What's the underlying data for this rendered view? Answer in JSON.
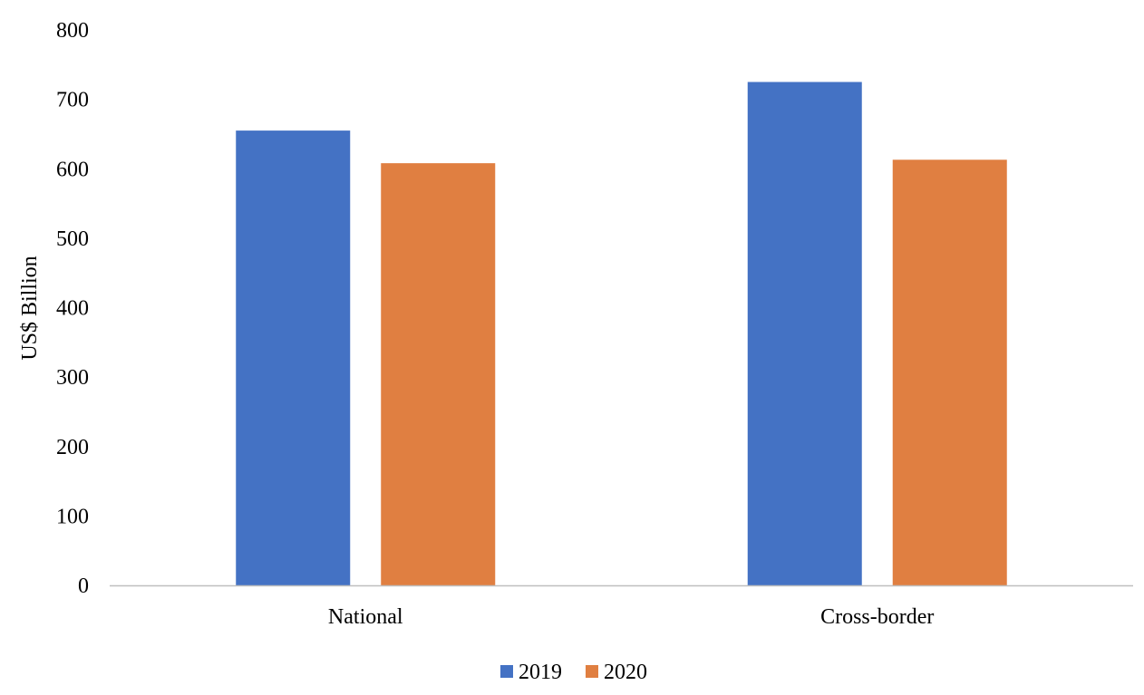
{
  "chart_data": {
    "type": "bar",
    "title": "",
    "xlabel": "",
    "ylabel": "US$ Billion",
    "categories": [
      "National",
      "Cross-border"
    ],
    "series": [
      {
        "name": "2019",
        "values": [
          655,
          725
        ],
        "color": "#4472C4"
      },
      {
        "name": "2020",
        "values": [
          608,
          613
        ],
        "color": "#E07F41"
      }
    ],
    "ylim": [
      0,
      800
    ],
    "yticks": [
      0,
      100,
      200,
      300,
      400,
      500,
      600,
      700,
      800
    ],
    "grid": false,
    "legend_position": "bottom-center",
    "axis_line_color": "#BFBFBF"
  }
}
